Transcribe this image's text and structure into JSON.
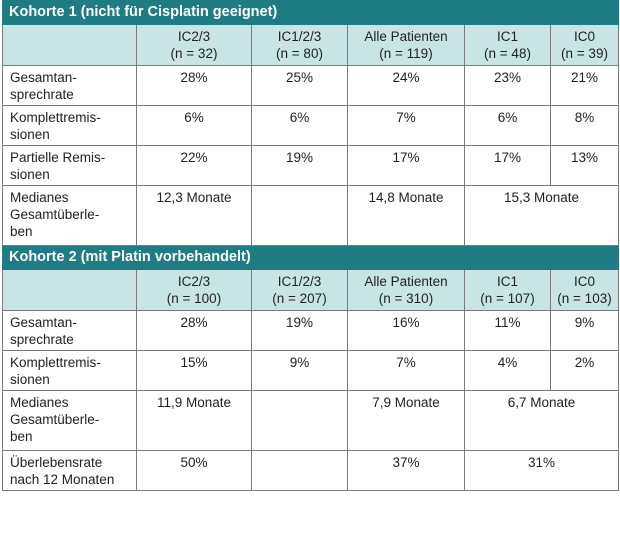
{
  "cohort1": {
    "title": "Kohorte 1 (nicht für Cisplatin geeignet)",
    "headers": [
      {
        "label": "IC2/3",
        "n": "(n = 32)"
      },
      {
        "label": "IC1/2/3",
        "n": "(n = 80)"
      },
      {
        "label": "Alle Patienten",
        "n": "(n = 119)"
      },
      {
        "label": "IC1",
        "n": "(n = 48)"
      },
      {
        "label": "IC0",
        "n": "(n = 39)"
      }
    ],
    "rows": [
      {
        "label": [
          "Gesamtan-",
          "sprechrate"
        ],
        "values": [
          "28%",
          "25%",
          "24%",
          "23%",
          "21%"
        ]
      },
      {
        "label": [
          "Komplettremis-",
          "sionen"
        ],
        "values": [
          "6%",
          "6%",
          "7%",
          "6%",
          "8%"
        ]
      },
      {
        "label": [
          "Partielle Remis-",
          "sionen"
        ],
        "values": [
          "22%",
          "19%",
          "17%",
          "17%",
          "13%"
        ]
      },
      {
        "label": [
          "Medianes",
          "Gesamtüberle-",
          "ben"
        ],
        "values": [
          "12,3 Monate",
          "",
          "14,8 Monate",
          "15,3 Monate"
        ]
      }
    ]
  },
  "cohort2": {
    "title": "Kohorte 2 (mit Platin vorbehandelt)",
    "headers": [
      {
        "label": "IC2/3",
        "n": "(n = 100)"
      },
      {
        "label": "IC1/2/3",
        "n": "(n = 207)"
      },
      {
        "label": "Alle Patienten",
        "n": "(n = 310)"
      },
      {
        "label": "IC1",
        "n": "(n = 107)"
      },
      {
        "label": "IC0",
        "n": "(n = 103)"
      }
    ],
    "rows": [
      {
        "label": [
          "Gesamtan-",
          "sprechrate"
        ],
        "values": [
          "28%",
          "19%",
          "16%",
          "11%",
          "9%"
        ]
      },
      {
        "label": [
          "Komplettremis-",
          "sionen"
        ],
        "values": [
          "15%",
          "9%",
          "7%",
          "4%",
          "2%"
        ]
      },
      {
        "label": [
          "Medianes",
          "Gesamtüberle-",
          "ben"
        ],
        "values": [
          "11,9 Monate",
          "",
          "7,9 Monate",
          "6,7 Monate"
        ]
      },
      {
        "label": [
          "Überlebensrate",
          "nach 12 Monaten"
        ],
        "values": [
          "50%",
          "",
          "37%",
          "31%"
        ]
      }
    ]
  }
}
